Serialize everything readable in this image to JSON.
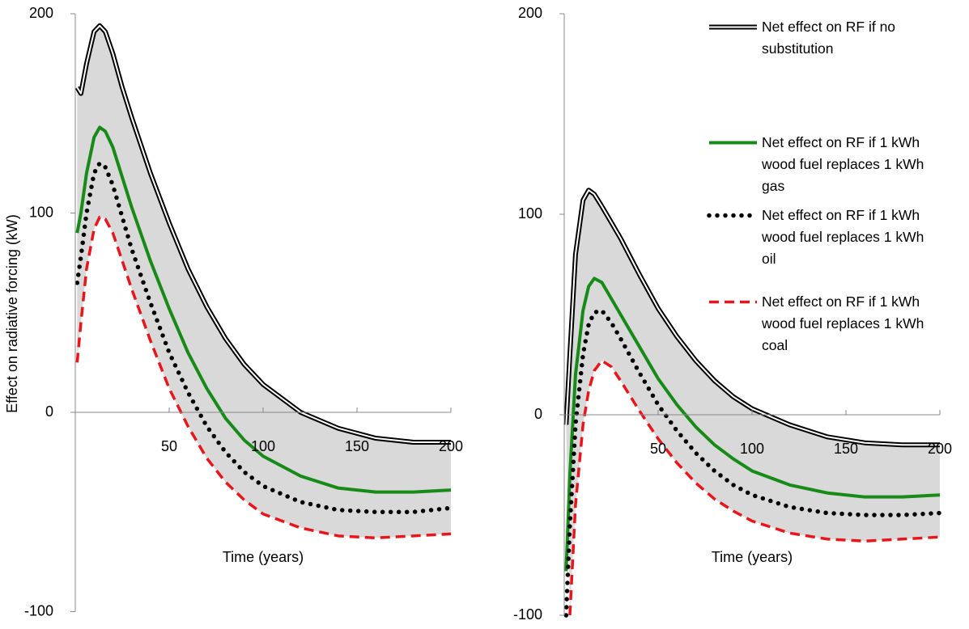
{
  "chart_data": [
    {
      "type": "line",
      "y_label": "Effect on radiative forcing (kW)",
      "x_label": "Time (years)",
      "x": [
        1,
        3,
        6,
        10,
        13,
        16,
        20,
        25,
        30,
        40,
        50,
        60,
        70,
        80,
        90,
        100,
        120,
        140,
        160,
        180,
        200
      ],
      "xlim": [
        0,
        200
      ],
      "xticks": [
        50,
        100,
        150,
        200
      ],
      "ylim": [
        -100,
        200
      ],
      "yticks": [
        -100,
        0,
        100,
        200
      ],
      "fill_between": [
        0,
        3
      ],
      "fill_color": "#d9d9d9",
      "series": [
        {
          "color": "#000000",
          "style": "double",
          "values": [
            163,
            160,
            175,
            191,
            194,
            191,
            180,
            163,
            148,
            120,
            95,
            72,
            53,
            37,
            24,
            14,
            0,
            -8,
            -13,
            -15,
            -15
          ]
        },
        {
          "color": "#178a17",
          "style": "solid",
          "values": [
            90,
            100,
            120,
            138,
            143,
            141,
            133,
            118,
            103,
            76,
            52,
            30,
            12,
            -3,
            -14,
            -22,
            -32,
            -38,
            -40,
            -40,
            -39
          ]
        },
        {
          "color": "#000000",
          "style": "dotted",
          "values": [
            65,
            78,
            100,
            120,
            125,
            123,
            114,
            98,
            82,
            55,
            30,
            10,
            -7,
            -20,
            -30,
            -37,
            -45,
            -49,
            -50,
            -50,
            -48
          ]
        },
        {
          "color": "#e8161b",
          "style": "dashed",
          "values": [
            25,
            45,
            72,
            92,
            98,
            97,
            90,
            76,
            62,
            36,
            12,
            -7,
            -23,
            -35,
            -44,
            -51,
            -58,
            -62,
            -63,
            -62,
            -61
          ]
        }
      ]
    },
    {
      "type": "line",
      "x_label": "Time (years)",
      "x": [
        1,
        3,
        6,
        10,
        13,
        16,
        20,
        25,
        30,
        40,
        50,
        60,
        70,
        80,
        90,
        100,
        120,
        140,
        160,
        180,
        200
      ],
      "xlim": [
        0,
        200
      ],
      "xticks": [
        50,
        100,
        150,
        200
      ],
      "ylim": [
        -100,
        200
      ],
      "yticks": [
        -100,
        0,
        100,
        200
      ],
      "fill_between": [
        0,
        3
      ],
      "fill_color": "#d9d9d9",
      "legend": "upper right",
      "series": [
        {
          "name": "Net effect on RF if no substitution",
          "color": "#000000",
          "style": "double",
          "values": [
            -5,
            30,
            80,
            107,
            112,
            110,
            104,
            96,
            88,
            70,
            53,
            39,
            27,
            17,
            9,
            3,
            -5,
            -11,
            -14,
            -15,
            -15
          ]
        },
        {
          "name": "Net effect on RF if 1 kWh wood fuel replaces 1 kWh gas",
          "color": "#178a17",
          "style": "solid",
          "values": [
            -78,
            -30,
            20,
            52,
            64,
            68,
            66,
            58,
            50,
            34,
            18,
            5,
            -6,
            -15,
            -22,
            -28,
            -35,
            -39,
            -41,
            -41,
            -40
          ]
        },
        {
          "name": "Net effect on RF if 1 kWh wood fuel replaces 1 kWh oil",
          "color": "#000000",
          "style": "dotted",
          "values": [
            -100,
            -55,
            -5,
            30,
            45,
            51,
            52,
            46,
            38,
            21,
            5,
            -8,
            -19,
            -28,
            -35,
            -40,
            -46,
            -49,
            -50,
            -50,
            -49
          ]
        },
        {
          "name": "Net effect on RF if 1 kWh wood fuel replaces 1 kWh coal",
          "color": "#e8161b",
          "style": "dashed",
          "values": [
            null,
            -100,
            -45,
            -5,
            12,
            22,
            27,
            24,
            17,
            2,
            -12,
            -24,
            -34,
            -42,
            -48,
            -53,
            -59,
            -62,
            -63,
            -62,
            -61
          ]
        }
      ]
    }
  ]
}
